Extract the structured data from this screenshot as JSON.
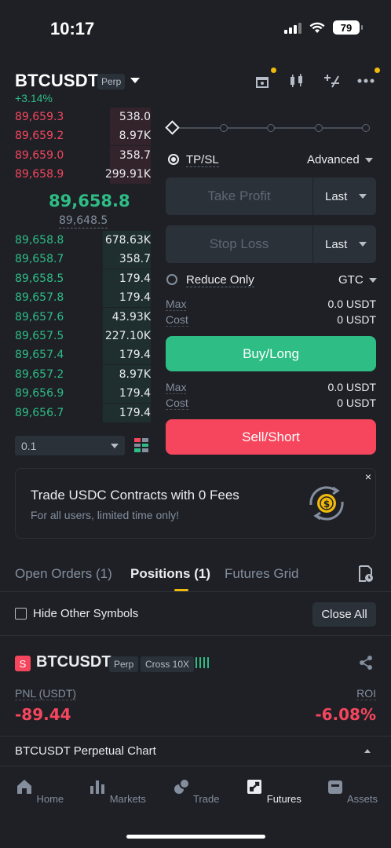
{
  "status_bar": {
    "time": "10:17",
    "battery": "79"
  },
  "header": {
    "symbol": "BTCUSDT",
    "perp_tag": "Perp",
    "change": "+3.14%",
    "icons": [
      "gift-icon",
      "candlestick-chart-icon",
      "percent-calculator-icon",
      "more-icon"
    ]
  },
  "order_book": {
    "asks": [
      {
        "price": "89,659.3",
        "qty": "538.0",
        "depth": 0.3
      },
      {
        "price": "89,659.2",
        "qty": "8.97K",
        "depth": 0.3
      },
      {
        "price": "89,659.0",
        "qty": "358.7",
        "depth": 0.3
      },
      {
        "price": "89,658.9",
        "qty": "299.91K",
        "depth": 0.3
      }
    ],
    "last_price": "89,658.8",
    "mark_price": "89,648.5",
    "bids": [
      {
        "price": "89,658.8",
        "qty": "678.63K",
        "depth": 0.35
      },
      {
        "price": "89,658.7",
        "qty": "358.7",
        "depth": 0.35
      },
      {
        "price": "89,658.5",
        "qty": "179.4",
        "depth": 0.35
      },
      {
        "price": "89,657.8",
        "qty": "179.4",
        "depth": 0.35
      },
      {
        "price": "89,657.6",
        "qty": "43.93K",
        "depth": 0.35
      },
      {
        "price": "89,657.5",
        "qty": "227.10K",
        "depth": 0.35
      },
      {
        "price": "89,657.4",
        "qty": "179.4",
        "depth": 0.35
      },
      {
        "price": "89,657.2",
        "qty": "8.97K",
        "depth": 0.35
      },
      {
        "price": "89,656.9",
        "qty": "179.4",
        "depth": 0.35
      },
      {
        "price": "89,656.7",
        "qty": "179.4",
        "depth": 0.35
      }
    ],
    "depth_value": "0.1"
  },
  "order_form": {
    "slider_percent": 0,
    "tpsl_label": "TP/SL",
    "advanced_label": "Advanced",
    "take_profit_placeholder": "Take Profit",
    "take_profit_unit": "Last",
    "stop_loss_placeholder": "Stop Loss",
    "stop_loss_unit": "Last",
    "reduce_only_label": "Reduce Only",
    "tif": "GTC",
    "buy": {
      "max_label": "Max",
      "max_value": "0.0 USDT",
      "cost_label": "Cost",
      "cost_value": "0 USDT",
      "button": "Buy/Long"
    },
    "sell": {
      "max_label": "Max",
      "max_value": "0.0 USDT",
      "cost_label": "Cost",
      "cost_value": "0 USDT",
      "button": "Sell/Short"
    }
  },
  "banner": {
    "title": "Trade USDC Contracts with 0 Fees",
    "subtitle": "For all users, limited time only!",
    "close": "×"
  },
  "tabs": [
    "Open Orders (1)",
    "Positions (1)",
    "Futures Grid"
  ],
  "filters": {
    "hide_other_label": "Hide Other Symbols",
    "close_all": "Close All"
  },
  "position": {
    "side_badge": "S",
    "symbol": "BTCUSDT",
    "perp_tag": "Perp",
    "margin_tag": "Cross 10X",
    "pnl_label": "PNL (USDT)",
    "pnl_value": "-89.44",
    "roi_label": "ROI",
    "roi_value": "-6.08%"
  },
  "chart_link": "BTCUSDT Perpetual  Chart",
  "nav": [
    {
      "label": "Home",
      "icon": "home-icon"
    },
    {
      "label": "Markets",
      "icon": "bar-chart-icon"
    },
    {
      "label": "Trade",
      "icon": "trade-icon"
    },
    {
      "label": "Futures",
      "icon": "futures-icon",
      "active": true
    },
    {
      "label": "Assets",
      "icon": "wallet-icon"
    }
  ],
  "colors": {
    "green": "#2ebd85",
    "red": "#f6465d",
    "accent": "#f0b90b",
    "bg": "#1e2026"
  }
}
